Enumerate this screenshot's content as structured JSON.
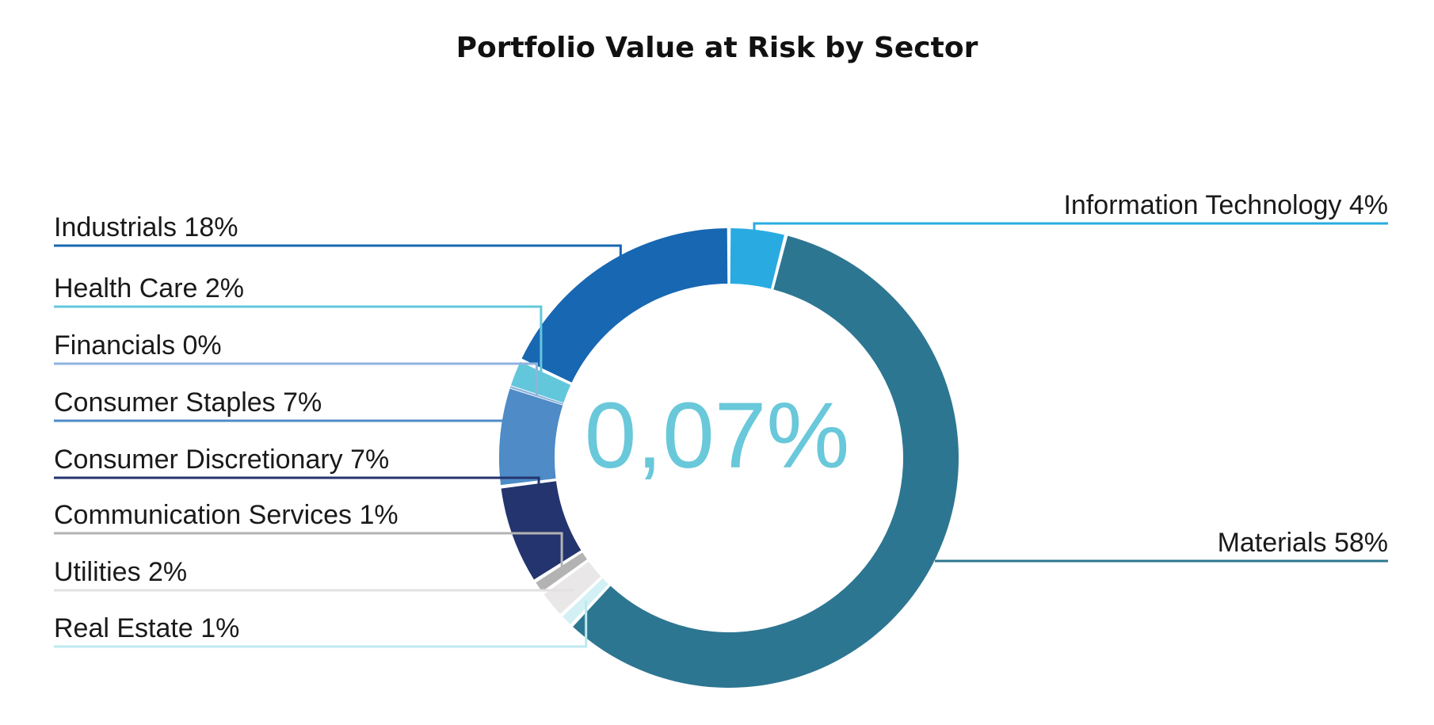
{
  "chart_data": {
    "type": "pie",
    "title": "Portfolio Value at Risk by Sector",
    "center_label": "0,07%",
    "center_color": "#69C8DA",
    "slices": [
      {
        "name": "Information Technology",
        "label": "Information Technology 4%",
        "value": 4,
        "color": "#29ABE2",
        "line_color": "#29ABE2"
      },
      {
        "name": "Materials",
        "label": "Materials 58%",
        "value": 58,
        "color": "#2D7691",
        "line_color": "#2D7691"
      },
      {
        "name": "Real Estate",
        "label": "Real Estate 1%",
        "value": 1,
        "color": "#D3F0F4",
        "line_color": "#BDE8F0"
      },
      {
        "name": "Utilities",
        "label": "Utilities 2%",
        "value": 2,
        "color": "#E9E7E7",
        "line_color": "#E2E0E0"
      },
      {
        "name": "Communication Services",
        "label": "Communication Services 1%",
        "value": 1,
        "color": "#B3B3B3",
        "line_color": "#B3B3B3"
      },
      {
        "name": "Consumer Discretionary",
        "label": "Consumer Discretionary 7%",
        "value": 7,
        "color": "#24346E",
        "line_color": "#24346E"
      },
      {
        "name": "Consumer Staples",
        "label": "Consumer Staples 7%",
        "value": 7,
        "color": "#4E8BC7",
        "line_color": "#4E8BC7"
      },
      {
        "name": "Financials",
        "label": "Financials 0%",
        "value": 0,
        "color": "#8FB3DE",
        "line_color": "#8FB3DE"
      },
      {
        "name": "Health Care",
        "label": "Health Care 2%",
        "value": 2,
        "color": "#63C7DC",
        "line_color": "#63C7DC"
      },
      {
        "name": "Industrials",
        "label": "Industrials 18%",
        "value": 18,
        "color": "#1867B2",
        "line_color": "#1867B2"
      }
    ]
  }
}
